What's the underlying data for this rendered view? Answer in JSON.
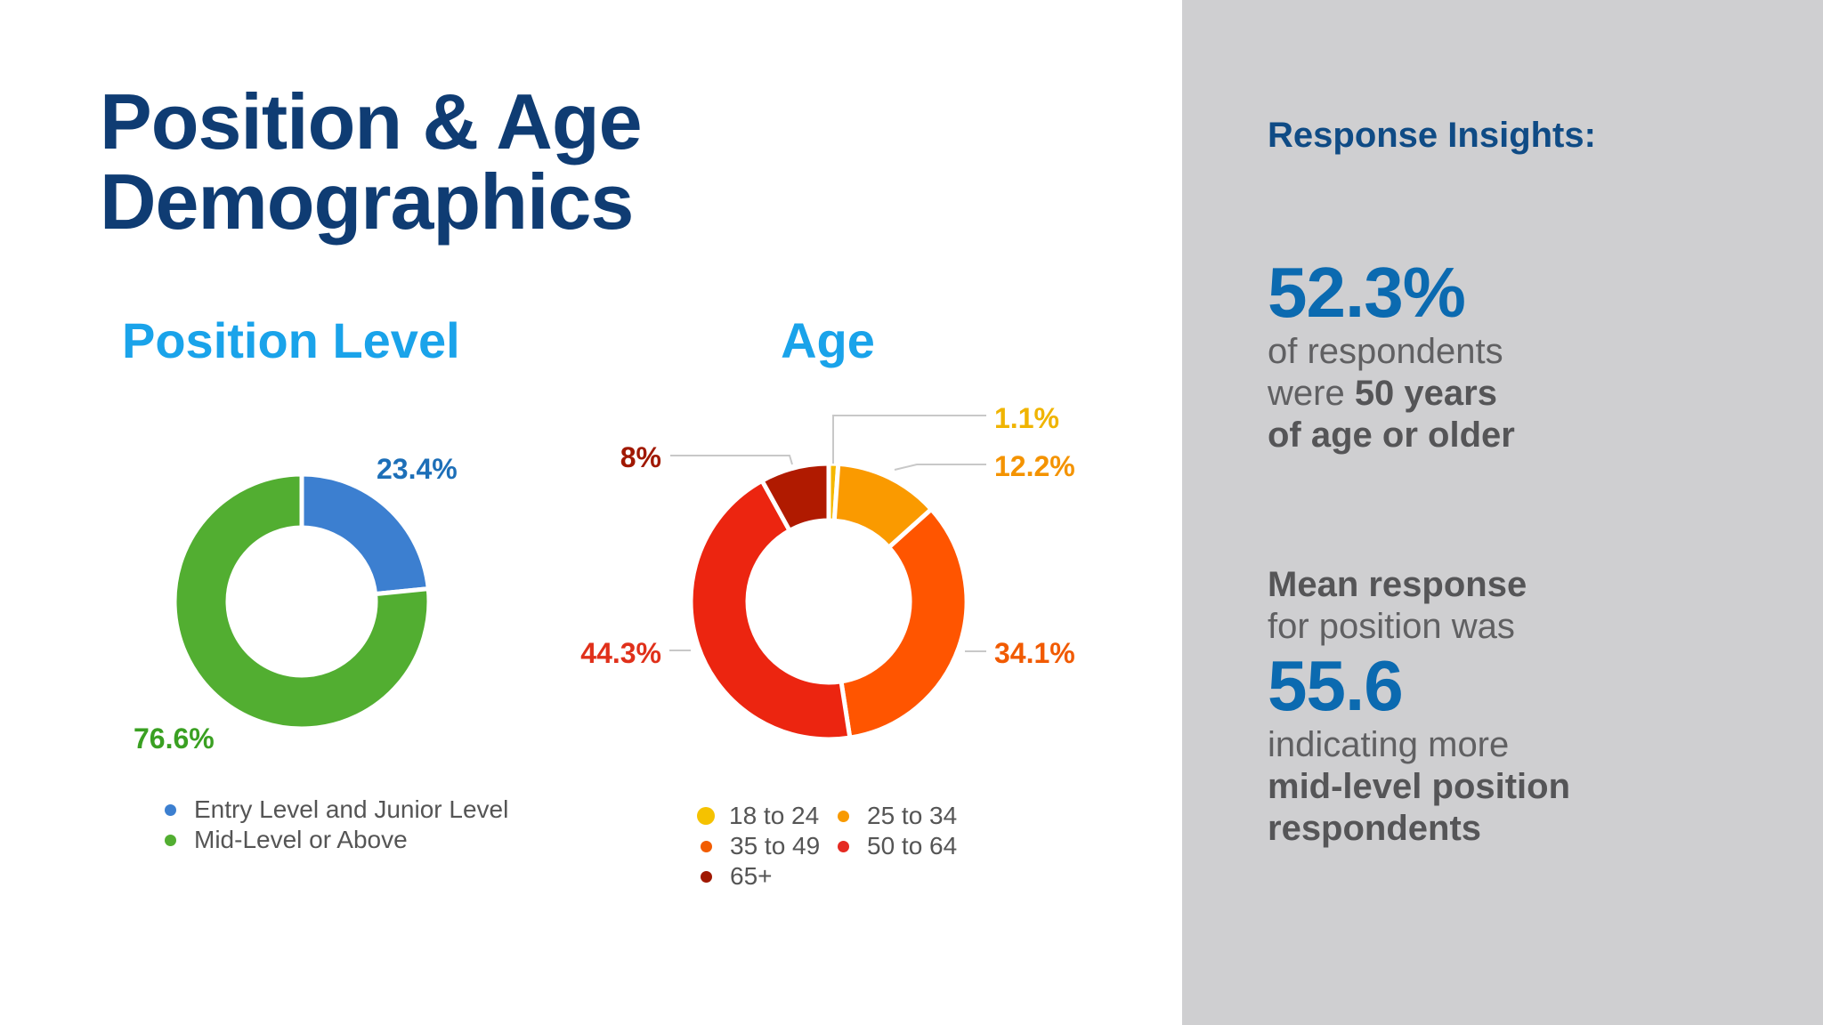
{
  "page": {
    "title_line1": "Position & Age",
    "title_line2": "Demographics"
  },
  "chart_data": [
    {
      "type": "pie",
      "title": "Position Level",
      "labels": [
        "Entry Level and Junior Level",
        "Mid-Level or Above"
      ],
      "values": [
        23.4,
        76.6
      ],
      "value_labels": [
        "23.4%",
        "76.6%"
      ],
      "colors": [
        "#3c7fd0",
        "#52ae31"
      ],
      "label_colors": [
        "#1d6fb8",
        "#3aa022"
      ],
      "donut": true,
      "legend_position": "bottom"
    },
    {
      "type": "pie",
      "title": "Age",
      "labels": [
        "18 to 24",
        "25 to 34",
        "35 to 49",
        "50 to 64",
        "65+"
      ],
      "values": [
        1.1,
        12.2,
        34.1,
        44.3,
        8
      ],
      "value_labels": [
        "1.1%",
        "12.2%",
        "34.1%",
        "44.3%",
        "8%"
      ],
      "colors": [
        "#f5b800",
        "#fa9a00",
        "#ff5500",
        "#ec2510",
        "#b01a00"
      ],
      "label_colors": [
        "#f0b400",
        "#f49300",
        "#f15a00",
        "#e0301a",
        "#a01800"
      ],
      "legend_dot_colors": [
        "#f5c200",
        "#f89a00",
        "#f25c00",
        "#e52a22",
        "#a01800"
      ],
      "donut": true,
      "legend_position": "bottom"
    }
  ],
  "insights": {
    "heading": "Response Insights:",
    "stat1_value": "52.3%",
    "stat1_line1": "of respondents",
    "stat1_line2_plain": "were ",
    "stat1_line2_bold": "50 years",
    "stat1_line3_bold": "of age or older",
    "stat2_line1_bold": "Mean response",
    "stat2_line2": "for position was",
    "stat2_value": "55.6",
    "stat2_line3": "indicating more",
    "stat2_line4_bold": "mid-level position",
    "stat2_line5_bold": "respondents"
  },
  "colors": {
    "title": "#0f3c73",
    "chart_title": "#1aa3ea",
    "right_panel_bg": "#cfcfd1",
    "insight_accent": "#0b6ab0"
  }
}
